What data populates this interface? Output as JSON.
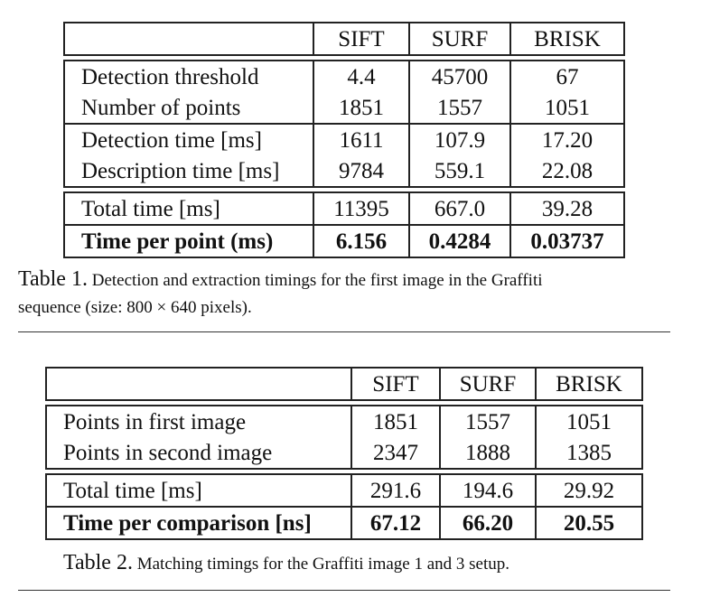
{
  "table1": {
    "headers": [
      "",
      "SIFT",
      "SURF",
      "BRISK"
    ],
    "groups": [
      [
        {
          "label": "Detection threshold",
          "values": [
            "4.4",
            "45700",
            "67"
          ]
        },
        {
          "label": "Number of points",
          "values": [
            "1851",
            "1557",
            "1051"
          ]
        }
      ],
      [
        {
          "label": "Detection time [ms]",
          "values": [
            "1611",
            "107.9",
            "17.20"
          ]
        },
        {
          "label": "Description time [ms]",
          "values": [
            "9784",
            "559.1",
            "22.08"
          ]
        }
      ],
      [
        {
          "label": "Total time [ms]",
          "values": [
            "11395",
            "667.0",
            "39.28"
          ]
        },
        {
          "label": "Time per point (ms)",
          "values": [
            "6.156",
            "0.4284",
            "0.03737"
          ],
          "bold": true
        }
      ]
    ],
    "caption_label": "Table 1.",
    "caption_line1": "Detection and extraction timings for the first image in the Graffiti",
    "caption_line2": "sequence (size: 800 × 640 pixels)."
  },
  "table2": {
    "headers": [
      "",
      "SIFT",
      "SURF",
      "BRISK"
    ],
    "groups": [
      [
        {
          "label": "Points in first image",
          "values": [
            "1851",
            "1557",
            "1051"
          ]
        },
        {
          "label": "Points in second image",
          "values": [
            "2347",
            "1888",
            "1385"
          ]
        }
      ],
      [
        {
          "label": "Total time [ms]",
          "values": [
            "291.6",
            "194.6",
            "29.92"
          ]
        },
        {
          "label": "Time per comparison [ns]",
          "values": [
            "67.12",
            "66.20",
            "20.55"
          ],
          "bold": true
        }
      ]
    ],
    "caption_label": "Table 2.",
    "caption_text": "Matching timings for the Graffiti image 1 and 3 setup."
  }
}
